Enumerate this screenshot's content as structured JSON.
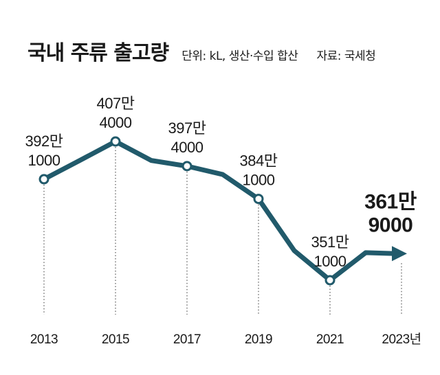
{
  "header": {
    "title": "국내 주류 출고량",
    "unit": "단위: kL, 생산·수입 합산",
    "source": "자료: 국세청"
  },
  "colors": {
    "line": "#215a6b",
    "marker_fill": "#ffffff",
    "guide": "#555555"
  },
  "chart_data": {
    "type": "line",
    "title": "국내 주류 출고량",
    "unit": "kL",
    "x": [
      2013,
      2014,
      2015,
      2016,
      2017,
      2018,
      2019,
      2020,
      2021,
      2022,
      2023
    ],
    "values": [
      3921000,
      3997000,
      4074000,
      3997000,
      3974000,
      3940000,
      3841000,
      3631000,
      3511000,
      3623000,
      3619000
    ],
    "ylim": [
      3400000,
      4150000
    ],
    "tick_labels": [
      "2013",
      "2015",
      "2017",
      "2019",
      "2021",
      "2023년"
    ],
    "tick_years": [
      2013,
      2015,
      2017,
      2019,
      2021,
      2023
    ],
    "marked_points": [
      {
        "year": 2013,
        "line1": "392만",
        "line2": "1000"
      },
      {
        "year": 2015,
        "line1": "407만",
        "line2": "4000"
      },
      {
        "year": 2017,
        "line1": "397만",
        "line2": "4000"
      },
      {
        "year": 2019,
        "line1": "384만",
        "line2": "1000"
      },
      {
        "year": 2021,
        "line1": "351만",
        "line2": "1000"
      }
    ],
    "final_label": {
      "year": 2023,
      "line1": "361만",
      "line2": "9000"
    }
  }
}
